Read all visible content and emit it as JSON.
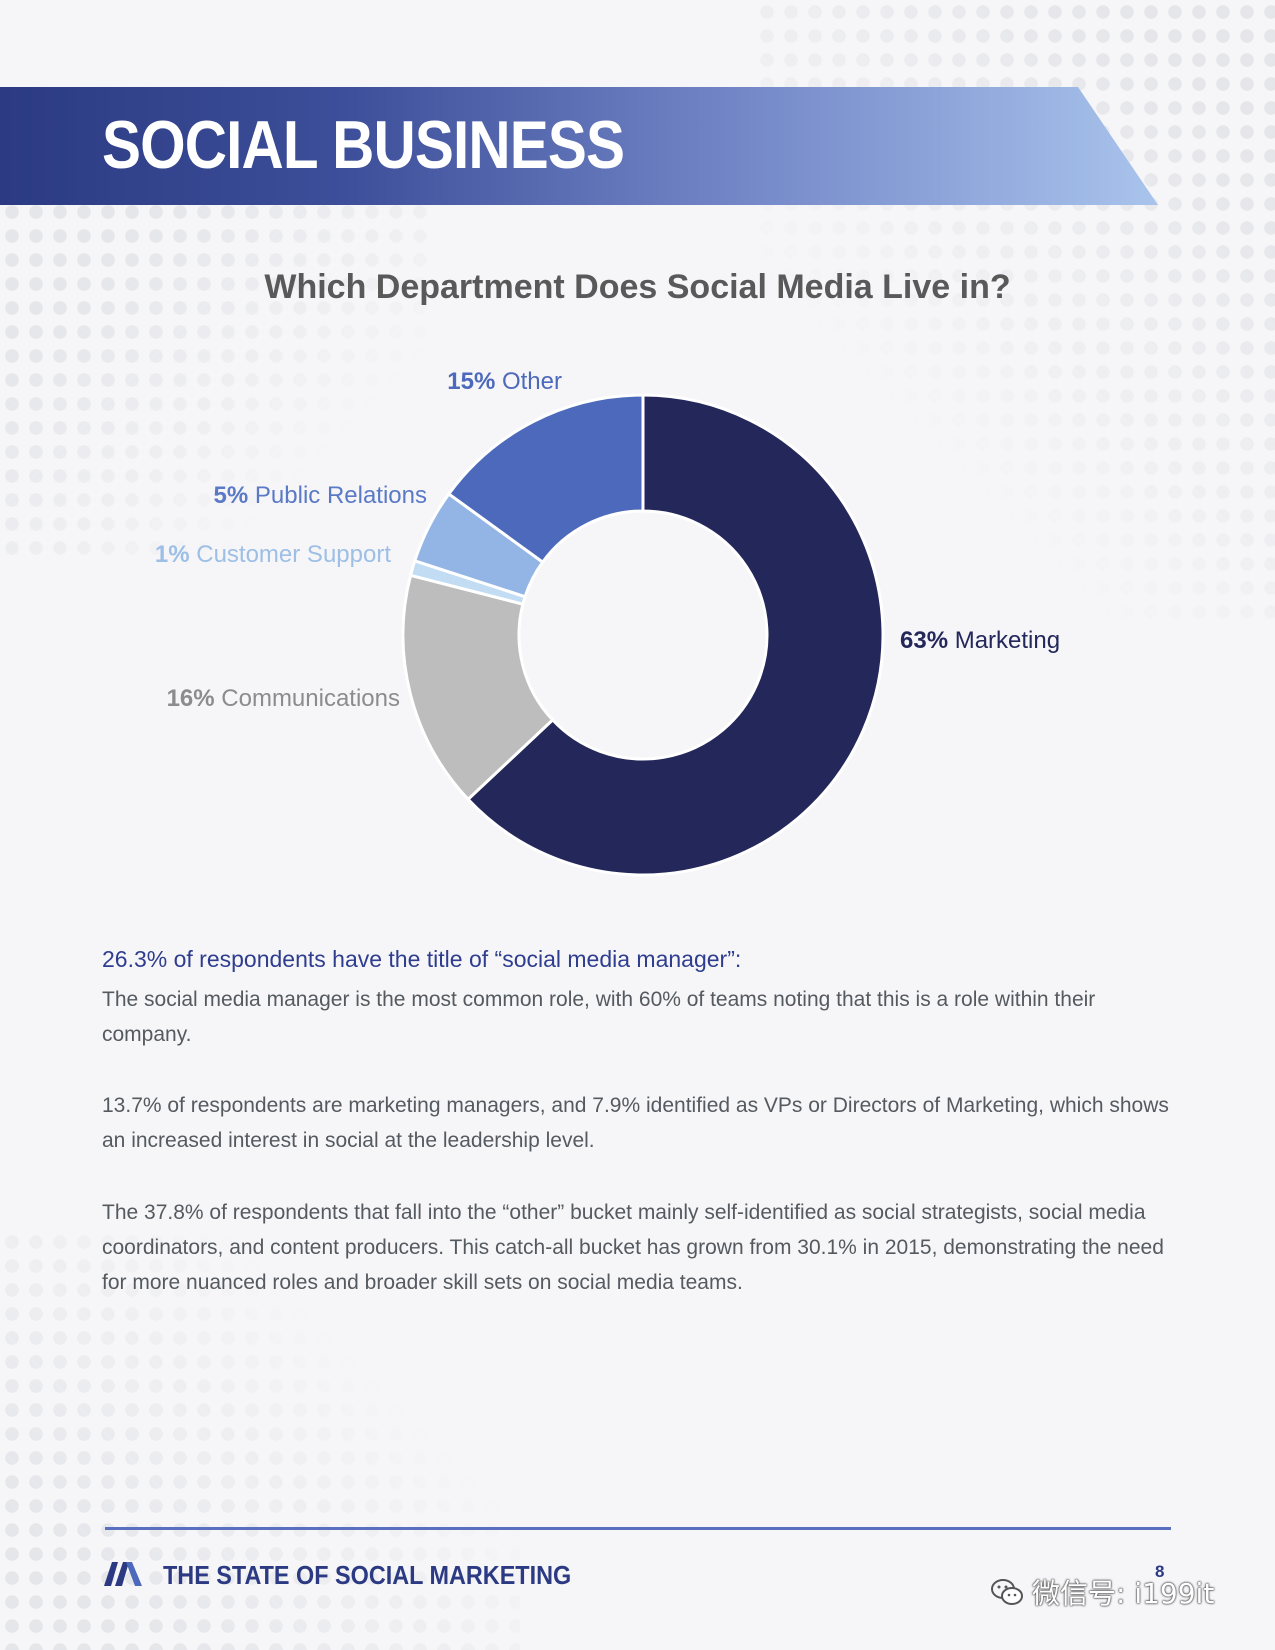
{
  "header": {
    "title": "SOCIAL BUSINESS"
  },
  "chart_data": {
    "type": "pie",
    "title": "Which Department Does Social Media Live in?",
    "donut": true,
    "series": [
      {
        "name": "Marketing",
        "value": 63,
        "label": "63%",
        "color": "#24275a"
      },
      {
        "name": "Communications",
        "value": 16,
        "label": "16%",
        "color": "#bdbdbd"
      },
      {
        "name": "Customer Support",
        "value": 1,
        "label": "1%",
        "color": "#c2dcf4"
      },
      {
        "name": "Public Relations",
        "value": 5,
        "label": "5%",
        "color": "#93b5e5"
      },
      {
        "name": "Other",
        "value": 15,
        "label": "15%",
        "color": "#4d69bb"
      }
    ],
    "label_colors": {
      "Marketing": "#24275a",
      "Communications": "#8c8c8c",
      "Customer Support": "#9dbfe6",
      "Public Relations": "#5a79c6",
      "Other": "#4d69bb"
    }
  },
  "content": {
    "lead": "26.3% of respondents have the title of “social media manager”:",
    "para1": "The social media manager is the most common role, with 60% of teams noting that this is a role within their company.",
    "para2": "13.7% of respondents are marketing managers, and 7.9% identified as VPs or Directors of Marketing, which shows an increased interest in social at the leadership level.",
    "para3": "The 37.8% of respondents that fall into the “other” bucket mainly self-identified as social strategists, social media coordinators, and content producers. This catch-all bucket has grown from 30.1% in 2015, demonstrating the need for more nuanced roles and broader skill sets on social media teams."
  },
  "footer": {
    "title": "THE STATE OF SOCIAL MARKETING",
    "page": "8",
    "watermark": "微信号: i199it",
    "logo_icon": "sprout-logo-icon",
    "watermark_icon": "wechat-icon"
  }
}
